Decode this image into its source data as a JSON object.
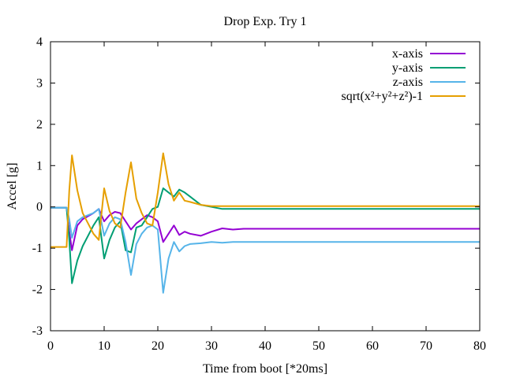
{
  "chart_data": {
    "type": "line",
    "title": "Drop Exp. Try 1",
    "xlabel": "Time from boot [*20ms]",
    "ylabel": "Accel [g]",
    "xlim": [
      0,
      80
    ],
    "ylim": [
      -3,
      4
    ],
    "xticks": [
      0,
      10,
      20,
      30,
      40,
      50,
      60,
      70,
      80
    ],
    "yticks": [
      -3,
      -2,
      -1,
      0,
      1,
      2,
      3,
      4
    ],
    "grid": false,
    "legend_position": "top-right",
    "series": [
      {
        "name": "x-axis",
        "color": "#9400d3",
        "points": [
          [
            0,
            -0.02
          ],
          [
            3,
            -0.02
          ],
          [
            3.5,
            -0.6
          ],
          [
            4,
            -1.05
          ],
          [
            5,
            -0.45
          ],
          [
            6,
            -0.3
          ],
          [
            8,
            -0.15
          ],
          [
            9,
            -0.05
          ],
          [
            10,
            -0.35
          ],
          [
            11,
            -0.2
          ],
          [
            12,
            -0.12
          ],
          [
            13,
            -0.15
          ],
          [
            14,
            -0.35
          ],
          [
            15,
            -0.55
          ],
          [
            16,
            -0.4
          ],
          [
            17,
            -0.3
          ],
          [
            18,
            -0.2
          ],
          [
            19,
            -0.25
          ],
          [
            20,
            -0.35
          ],
          [
            21,
            -0.85
          ],
          [
            22,
            -0.65
          ],
          [
            23,
            -0.45
          ],
          [
            24,
            -0.68
          ],
          [
            25,
            -0.6
          ],
          [
            26,
            -0.65
          ],
          [
            28,
            -0.7
          ],
          [
            30,
            -0.6
          ],
          [
            32,
            -0.52
          ],
          [
            34,
            -0.55
          ],
          [
            36,
            -0.53
          ],
          [
            40,
            -0.53
          ],
          [
            60,
            -0.53
          ],
          [
            80,
            -0.53
          ]
        ]
      },
      {
        "name": "y-axis",
        "color": "#009e73",
        "points": [
          [
            0,
            -0.02
          ],
          [
            3,
            -0.02
          ],
          [
            3.5,
            -0.8
          ],
          [
            4,
            -1.85
          ],
          [
            5,
            -1.3
          ],
          [
            6,
            -0.95
          ],
          [
            8,
            -0.45
          ],
          [
            9,
            -0.25
          ],
          [
            10,
            -1.25
          ],
          [
            11,
            -0.8
          ],
          [
            12,
            -0.5
          ],
          [
            13,
            -0.35
          ],
          [
            14,
            -1.05
          ],
          [
            15,
            -1.1
          ],
          [
            16,
            -0.5
          ],
          [
            17,
            -0.45
          ],
          [
            18,
            -0.25
          ],
          [
            19,
            -0.05
          ],
          [
            20,
            0.0
          ],
          [
            21,
            0.45
          ],
          [
            22,
            0.35
          ],
          [
            23,
            0.25
          ],
          [
            24,
            0.42
          ],
          [
            25,
            0.35
          ],
          [
            26,
            0.25
          ],
          [
            28,
            0.05
          ],
          [
            30,
            0.0
          ],
          [
            32,
            -0.05
          ],
          [
            36,
            -0.05
          ],
          [
            40,
            -0.05
          ],
          [
            60,
            -0.05
          ],
          [
            80,
            -0.05
          ]
        ]
      },
      {
        "name": "z-axis",
        "color": "#56b4e9",
        "points": [
          [
            0,
            -0.02
          ],
          [
            3,
            -0.02
          ],
          [
            3.5,
            -0.3
          ],
          [
            4,
            -0.75
          ],
          [
            5,
            -0.35
          ],
          [
            6,
            -0.25
          ],
          [
            8,
            -0.15
          ],
          [
            9,
            -0.05
          ],
          [
            10,
            -0.7
          ],
          [
            11,
            -0.4
          ],
          [
            12,
            -0.25
          ],
          [
            13,
            -0.3
          ],
          [
            14,
            -0.85
          ],
          [
            15,
            -1.65
          ],
          [
            16,
            -0.9
          ],
          [
            17,
            -0.65
          ],
          [
            18,
            -0.5
          ],
          [
            19,
            -0.45
          ],
          [
            20,
            -0.55
          ],
          [
            21,
            -2.08
          ],
          [
            22,
            -1.25
          ],
          [
            23,
            -0.85
          ],
          [
            24,
            -1.08
          ],
          [
            25,
            -0.95
          ],
          [
            26,
            -0.9
          ],
          [
            28,
            -0.88
          ],
          [
            30,
            -0.85
          ],
          [
            32,
            -0.87
          ],
          [
            34,
            -0.85
          ],
          [
            36,
            -0.85
          ],
          [
            40,
            -0.85
          ],
          [
            60,
            -0.85
          ],
          [
            80,
            -0.85
          ]
        ]
      },
      {
        "name": "sqrt(x²+y²+z²)-1",
        "color": "#e69f00",
        "points": [
          [
            0,
            -0.97
          ],
          [
            3,
            -0.97
          ],
          [
            3.5,
            0.4
          ],
          [
            4,
            1.25
          ],
          [
            5,
            0.4
          ],
          [
            6,
            -0.15
          ],
          [
            8,
            -0.65
          ],
          [
            9,
            -0.8
          ],
          [
            10,
            0.45
          ],
          [
            11,
            -0.1
          ],
          [
            12,
            -0.4
          ],
          [
            13,
            -0.5
          ],
          [
            14,
            0.35
          ],
          [
            15,
            1.08
          ],
          [
            16,
            0.2
          ],
          [
            17,
            -0.15
          ],
          [
            18,
            -0.4
          ],
          [
            19,
            -0.45
          ],
          [
            20,
            0.35
          ],
          [
            21,
            1.3
          ],
          [
            22,
            0.55
          ],
          [
            23,
            0.15
          ],
          [
            24,
            0.35
          ],
          [
            25,
            0.15
          ],
          [
            26,
            0.12
          ],
          [
            28,
            0.05
          ],
          [
            30,
            0.02
          ],
          [
            34,
            0.02
          ],
          [
            40,
            0.02
          ],
          [
            60,
            0.02
          ],
          [
            80,
            0.02
          ]
        ]
      }
    ]
  }
}
